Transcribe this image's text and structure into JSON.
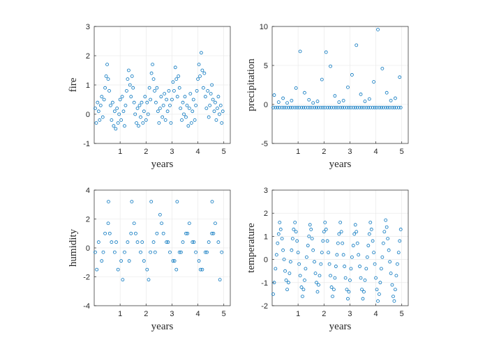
{
  "chart_data": [
    {
      "type": "scatter",
      "title": "",
      "xlabel": "years",
      "ylabel": "fire",
      "xlim": [
        0,
        5.25
      ],
      "ylim": [
        -1,
        3
      ],
      "xticks": [
        1,
        2,
        3,
        4,
        5
      ],
      "yticks": [
        -1,
        0,
        1,
        2,
        3
      ],
      "grid": true,
      "marker": "open-circle",
      "color": "#0072bd",
      "series": [
        {
          "x": [
            0.04,
            0.08,
            0.13,
            0.17,
            0.21,
            0.25,
            0.29,
            0.33,
            0.38,
            0.42,
            0.46,
            0.5,
            0.54,
            0.58,
            0.63,
            0.67,
            0.71,
            0.75,
            0.79,
            0.83,
            0.88,
            0.92,
            0.96,
            1.0,
            1.04,
            1.08,
            1.13,
            1.17,
            1.21,
            1.25,
            1.29,
            1.33,
            1.38,
            1.42,
            1.46,
            1.5,
            1.54,
            1.58,
            1.63,
            1.67,
            1.71,
            1.75,
            1.79,
            1.83,
            1.88,
            1.92,
            1.96,
            2.0,
            2.04,
            2.08,
            2.13,
            2.17,
            2.21,
            2.25,
            2.29,
            2.33,
            2.38,
            2.42,
            2.46,
            2.5,
            2.54,
            2.58,
            2.63,
            2.67,
            2.71,
            2.75,
            2.79,
            2.83,
            2.88,
            2.92,
            2.96,
            3.0,
            3.04,
            3.08,
            3.13,
            3.17,
            3.21,
            3.25,
            3.29,
            3.33,
            3.38,
            3.42,
            3.46,
            3.5,
            3.54,
            3.58,
            3.63,
            3.67,
            3.71,
            3.75,
            3.79,
            3.83,
            3.88,
            3.92,
            3.96,
            4.0,
            4.04,
            4.08,
            4.13,
            4.17,
            4.21,
            4.25,
            4.29,
            4.33,
            4.38,
            4.42,
            4.46,
            4.5,
            4.54,
            4.58,
            4.63,
            4.67,
            4.71,
            4.75,
            4.79,
            4.83,
            4.88,
            4.92,
            4.96
          ],
          "y": [
            0.2,
            -0.3,
            0.4,
            0.1,
            -0.2,
            0.3,
            0.6,
            -0.1,
            0.5,
            0.9,
            1.3,
            1.7,
            1.2,
            0.8,
            0.3,
            -0.2,
            0.4,
            -0.4,
            0.1,
            -0.5,
            0.2,
            -0.3,
            0.0,
            0.5,
            -0.2,
            0.6,
            0.1,
            -0.4,
            0.3,
            0.8,
            1.2,
            1.5,
            1.0,
            0.6,
            1.3,
            0.9,
            0.4,
            0.0,
            -0.3,
            0.2,
            -0.4,
            0.3,
            -0.1,
            0.4,
            -0.3,
            0.1,
            0.6,
            -0.2,
            0.4,
            0.0,
            0.9,
            0.5,
            1.4,
            1.7,
            1.2,
            0.8,
            0.4,
            0.9,
            0.1,
            -0.3,
            0.2,
            0.6,
            -0.1,
            0.3,
            0.7,
            -0.2,
            0.5,
            0.1,
            0.8,
            0.3,
            -0.3,
            0.5,
            1.1,
            0.8,
            1.6,
            1.2,
            0.6,
            1.3,
            0.9,
            0.2,
            -0.2,
            0.4,
            0.0,
            0.6,
            -0.1,
            0.3,
            -0.4,
            0.2,
            0.7,
            -0.3,
            0.1,
            0.5,
            -0.2,
            0.3,
            0.8,
            1.2,
            1.7,
            1.3,
            2.1,
            1.5,
            0.9,
            1.4,
            0.6,
            0.2,
            0.8,
            -0.1,
            0.3,
            0.7,
            1.0,
            0.5,
            0.1,
            0.4,
            -0.2,
            0.2,
            0.6,
            0.0,
            0.3,
            -0.3,
            0.1
          ]
        }
      ]
    },
    {
      "type": "scatter",
      "title": "",
      "xlabel": "years",
      "ylabel": "precipitation",
      "xlim": [
        0,
        5.25
      ],
      "ylim": [
        -5,
        10
      ],
      "xticks": [
        1,
        2,
        3,
        4,
        5
      ],
      "yticks": [
        -5,
        0,
        5,
        10
      ],
      "grid": true,
      "marker": "open-circle",
      "color": "#0072bd",
      "series": [
        {
          "x": [
            0.04,
            0.13,
            0.21,
            0.29,
            0.38,
            0.46,
            0.54,
            0.63,
            0.71,
            0.79,
            0.88,
            0.96,
            1.04,
            1.13,
            1.21,
            1.29,
            1.38,
            1.46,
            1.54,
            1.63,
            1.71,
            1.79,
            1.88,
            1.96,
            2.04,
            2.13,
            2.21,
            2.29,
            2.38,
            2.46,
            2.54,
            2.63,
            2.71,
            2.79,
            2.88,
            2.96,
            3.04,
            3.13,
            3.21,
            3.29,
            3.38,
            3.46,
            3.54,
            3.63,
            3.71,
            3.79,
            3.88,
            3.96,
            4.04,
            4.13,
            4.21,
            4.29,
            4.38,
            4.46,
            4.54,
            4.63,
            4.71,
            4.79,
            4.88,
            4.96,
            0.08,
            0.25,
            0.42,
            0.58,
            0.75,
            0.92,
            1.08,
            1.25,
            1.42,
            1.58,
            1.75,
            1.92,
            2.08,
            2.25,
            2.42,
            2.58,
            2.75,
            2.92,
            3.08,
            3.25,
            3.42,
            3.58,
            3.75,
            3.92,
            4.08,
            4.25,
            4.42,
            4.58,
            4.75,
            4.92
          ],
          "y": [
            -0.4,
            -0.4,
            -0.4,
            -0.4,
            -0.4,
            -0.4,
            -0.4,
            -0.4,
            -0.4,
            -0.4,
            -0.4,
            -0.4,
            -0.4,
            -0.4,
            -0.4,
            -0.4,
            -0.4,
            -0.4,
            -0.4,
            -0.4,
            -0.4,
            -0.4,
            -0.4,
            -0.4,
            -0.4,
            -0.4,
            -0.4,
            -0.4,
            -0.4,
            -0.4,
            -0.4,
            -0.4,
            -0.4,
            -0.4,
            -0.4,
            -0.4,
            -0.4,
            -0.4,
            -0.4,
            -0.4,
            -0.4,
            -0.4,
            -0.4,
            -0.4,
            -0.4,
            -0.4,
            -0.4,
            -0.4,
            -0.4,
            -0.4,
            -0.4,
            -0.4,
            -0.4,
            -0.4,
            -0.4,
            -0.4,
            -0.4,
            -0.4,
            -0.4,
            -0.4,
            1.2,
            0.3,
            0.8,
            0.2,
            0.5,
            2.1,
            6.8,
            1.5,
            0.6,
            0.2,
            0.4,
            3.2,
            6.7,
            4.9,
            1.1,
            0.3,
            0.5,
            2.2,
            3.8,
            7.6,
            1.3,
            0.4,
            0.7,
            2.9,
            9.6,
            4.6,
            1.5,
            0.5,
            0.8,
            3.5
          ]
        }
      ]
    },
    {
      "type": "scatter",
      "title": "",
      "xlabel": "years",
      "ylabel": "humidity",
      "xlim": [
        0,
        5.25
      ],
      "ylim": [
        -4,
        4
      ],
      "xticks": [
        1,
        2,
        3,
        4,
        5
      ],
      "yticks": [
        -4,
        -2,
        0,
        2,
        4
      ],
      "grid": true,
      "marker": "open-circle",
      "color": "#0072bd",
      "series": [
        {
          "x": [
            0.04,
            0.17,
            0.29,
            0.42,
            0.54,
            0.67,
            0.79,
            0.92,
            1.04,
            1.17,
            1.29,
            1.42,
            1.54,
            1.67,
            1.79,
            1.92,
            2.04,
            2.17,
            2.29,
            2.42,
            2.54,
            2.67,
            2.79,
            2.92,
            3.04,
            3.17,
            3.29,
            3.42,
            3.54,
            3.67,
            3.79,
            3.92,
            4.04,
            4.17,
            4.29,
            4.42,
            4.54,
            4.67,
            4.79,
            4.92,
            0.1,
            0.35,
            0.6,
            0.85,
            1.1,
            1.35,
            1.6,
            1.85,
            2.1,
            2.35,
            2.6,
            2.85,
            3.1,
            3.35,
            3.6,
            3.85,
            4.1,
            4.35,
            4.6,
            4.85,
            0.55,
            1.45,
            2.2,
            3.2,
            4.55
          ],
          "y": [
            -0.3,
            0.4,
            -0.9,
            1.0,
            1.7,
            0.4,
            -0.3,
            -1.5,
            -0.9,
            -0.3,
            0.4,
            1.0,
            1.7,
            0.4,
            -0.3,
            -0.9,
            -1.5,
            -0.3,
            0.4,
            1.0,
            2.3,
            1.0,
            0.4,
            -0.3,
            -0.9,
            -1.5,
            -0.3,
            0.4,
            1.0,
            1.7,
            0.4,
            -0.3,
            -0.9,
            -1.5,
            -0.3,
            0.4,
            1.0,
            1.7,
            0.4,
            -0.3,
            -1.5,
            -0.3,
            1.0,
            0.4,
            -2.2,
            -0.9,
            1.0,
            0.4,
            -2.2,
            -0.3,
            1.7,
            0.4,
            -0.9,
            -0.3,
            1.0,
            0.4,
            -1.5,
            -0.3,
            1.0,
            -2.2,
            3.2,
            3.2,
            3.2,
            3.2,
            3.2
          ]
        }
      ]
    },
    {
      "type": "scatter",
      "title": "",
      "xlabel": "years",
      "ylabel": "temperature",
      "xlim": [
        0,
        5.25
      ],
      "ylim": [
        -2,
        3
      ],
      "xticks": [
        1,
        2,
        3,
        4,
        5
      ],
      "yticks": [
        -2,
        -1,
        0,
        1,
        2,
        3
      ],
      "grid": true,
      "marker": "open-circle",
      "color": "#0072bd",
      "series": [
        {
          "x": [
            0.04,
            0.08,
            0.13,
            0.17,
            0.21,
            0.25,
            0.29,
            0.33,
            0.38,
            0.42,
            0.46,
            0.5,
            0.54,
            0.58,
            0.63,
            0.67,
            0.71,
            0.75,
            0.79,
            0.83,
            0.88,
            0.92,
            0.96,
            1.0,
            1.04,
            1.08,
            1.13,
            1.17,
            1.21,
            1.25,
            1.29,
            1.33,
            1.38,
            1.42,
            1.46,
            1.5,
            1.54,
            1.58,
            1.63,
            1.67,
            1.71,
            1.75,
            1.79,
            1.83,
            1.88,
            1.92,
            1.96,
            2.0,
            2.04,
            2.08,
            2.13,
            2.17,
            2.21,
            2.25,
            2.29,
            2.33,
            2.38,
            2.42,
            2.46,
            2.5,
            2.54,
            2.58,
            2.63,
            2.67,
            2.71,
            2.75,
            2.79,
            2.83,
            2.88,
            2.92,
            2.96,
            3.0,
            3.04,
            3.08,
            3.13,
            3.17,
            3.21,
            3.25,
            3.29,
            3.33,
            3.38,
            3.42,
            3.46,
            3.5,
            3.54,
            3.58,
            3.63,
            3.67,
            3.71,
            3.75,
            3.79,
            3.83,
            3.88,
            3.92,
            3.96,
            4.0,
            4.04,
            4.08,
            4.13,
            4.17,
            4.21,
            4.25,
            4.29,
            4.33,
            4.38,
            4.42,
            4.46,
            4.5,
            4.54,
            4.58,
            4.63,
            4.67,
            4.71,
            4.75,
            4.79,
            4.83,
            4.88,
            4.92,
            4.96
          ],
          "y": [
            -1.5,
            -1.0,
            -0.4,
            0.2,
            0.7,
            1.1,
            1.6,
            1.3,
            0.9,
            0.4,
            0.0,
            -0.5,
            -0.9,
            -1.3,
            -1.0,
            -0.6,
            -0.1,
            0.4,
            0.9,
            1.3,
            1.6,
            1.2,
            0.8,
            0.3,
            -0.2,
            -0.7,
            -1.2,
            -1.6,
            -1.3,
            -0.9,
            -0.4,
            0.1,
            0.6,
            1.0,
            1.5,
            1.3,
            0.9,
            0.4,
            -0.1,
            -0.6,
            -1.0,
            -1.4,
            -1.1,
            -0.7,
            -0.2,
            0.3,
            0.8,
            1.2,
            1.6,
            1.3,
            0.8,
            0.3,
            -0.2,
            -0.7,
            -1.2,
            -1.6,
            -1.3,
            -0.8,
            -0.3,
            0.2,
            0.7,
            1.1,
            1.6,
            1.2,
            0.7,
            0.2,
            -0.3,
            -0.8,
            -1.3,
            -1.7,
            -1.4,
            -0.9,
            -0.4,
            0.1,
            0.6,
            1.1,
            1.5,
            1.2,
            0.7,
            0.2,
            -0.3,
            -0.8,
            -1.3,
            -1.7,
            -1.4,
            -0.9,
            -0.4,
            0.1,
            0.6,
            1.1,
            1.6,
            1.3,
            0.8,
            0.3,
            -0.2,
            -0.8,
            -1.3,
            -1.8,
            -1.5,
            -1.0,
            -0.4,
            0.1,
            0.7,
            1.2,
            1.7,
            1.4,
            0.9,
            0.4,
            -0.1,
            -0.6,
            -1.1,
            -1.6,
            -1.8,
            -1.3,
            -0.7,
            -0.2,
            0.3,
            0.8,
            1.3
          ]
        }
      ]
    }
  ]
}
